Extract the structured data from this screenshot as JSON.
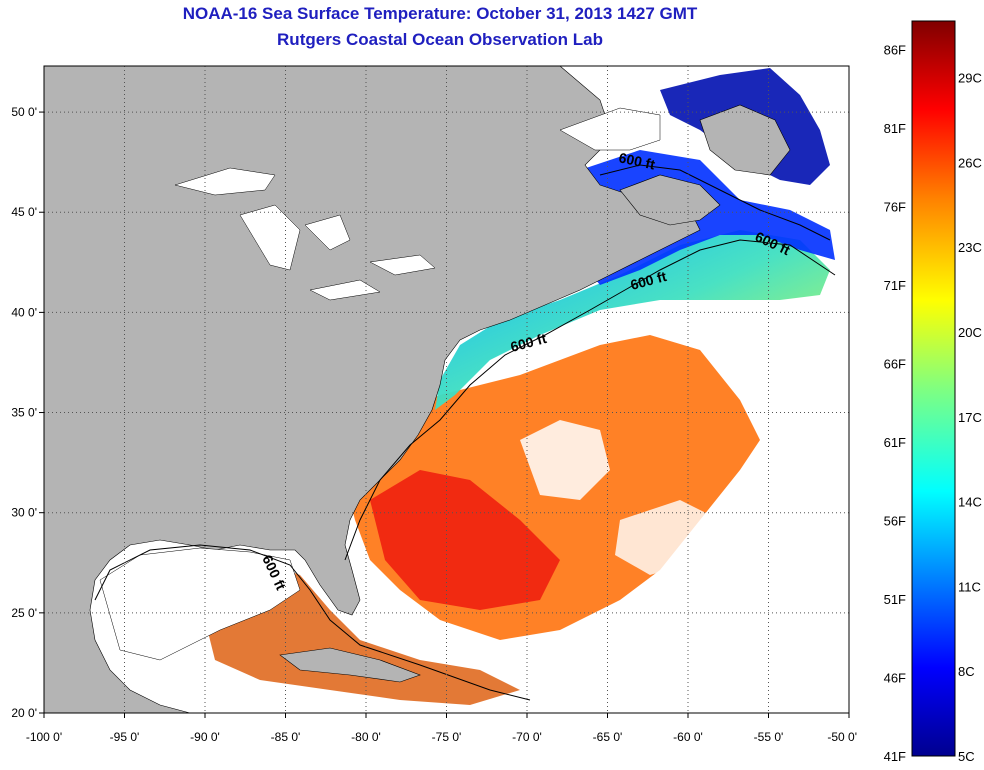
{
  "title": "NOAA-16 Sea Surface Temperature:  October 31, 2013 1427 GMT",
  "subtitle": "Rutgers Coastal Ocean Observation Lab",
  "map": {
    "lon_range": [
      -100,
      -50
    ],
    "lat_range": [
      20,
      52.3
    ],
    "lon_ticks": [
      {
        "value": -100,
        "label": "-100 0'"
      },
      {
        "value": -95,
        "label": "-95 0'"
      },
      {
        "value": -90,
        "label": "-90 0'"
      },
      {
        "value": -85,
        "label": "-85 0'"
      },
      {
        "value": -80,
        "label": "-80 0'"
      },
      {
        "value": -75,
        "label": "-75 0'"
      },
      {
        "value": -70,
        "label": "-70 0'"
      },
      {
        "value": -65,
        "label": "-65 0'"
      },
      {
        "value": -60,
        "label": "-60 0'"
      },
      {
        "value": -55,
        "label": "-55 0'"
      },
      {
        "value": -50,
        "label": "-50 0'"
      }
    ],
    "lat_ticks": [
      {
        "value": 20,
        "label": "20 0'"
      },
      {
        "value": 25,
        "label": "25 0'"
      },
      {
        "value": 30,
        "label": "30 0'"
      },
      {
        "value": 35,
        "label": "35 0'"
      },
      {
        "value": 40,
        "label": "40 0'"
      },
      {
        "value": 45,
        "label": "45 0'"
      },
      {
        "value": 50,
        "label": "50 0'"
      }
    ],
    "contour_labels": [
      "600 ft",
      "600 ft",
      "600 ft",
      "600 ft",
      "600 ft"
    ],
    "land_color": "#b4b4b4",
    "no_data_color": "#ffffff"
  },
  "colorbar": {
    "min_c": 5,
    "max_c": 31,
    "fahrenheit_labels": [
      "41F",
      "46F",
      "51F",
      "56F",
      "61F",
      "66F",
      "71F",
      "76F",
      "81F",
      "86F"
    ],
    "celsius_labels": [
      "5C",
      "8C",
      "11C",
      "14C",
      "17C",
      "20C",
      "23C",
      "26C",
      "29C"
    ],
    "colors": [
      "#00008f",
      "#0000ff",
      "#0080ff",
      "#00ffff",
      "#80ff80",
      "#ffff00",
      "#ff8000",
      "#ff0000",
      "#800000"
    ]
  }
}
